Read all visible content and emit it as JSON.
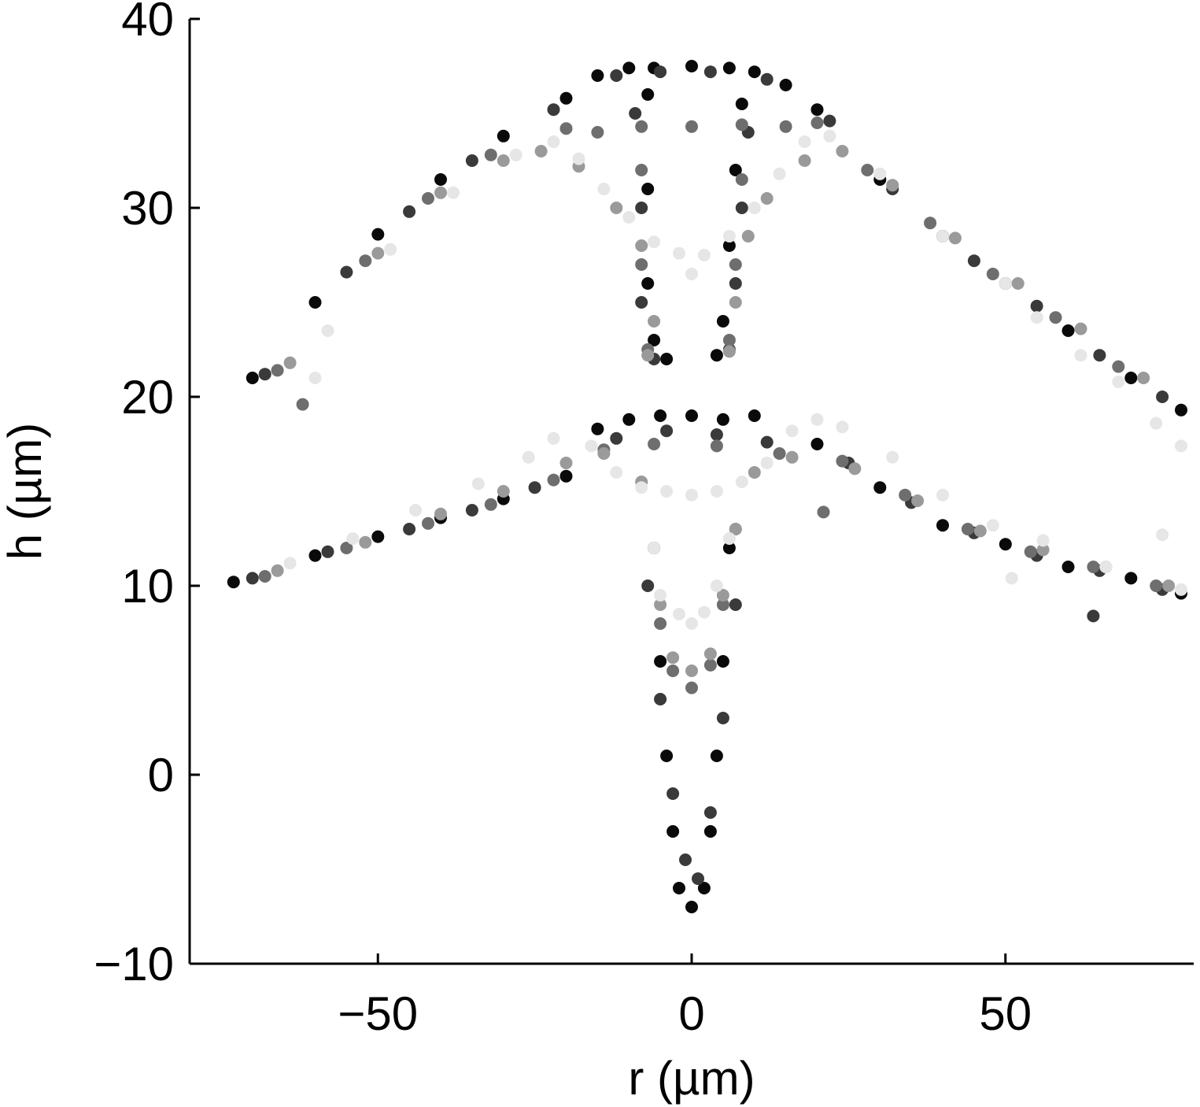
{
  "chart_data": {
    "type": "scatter",
    "title": "",
    "xlabel": "r (µm)",
    "ylabel": "h (µm)",
    "xlim": [
      -80,
      80
    ],
    "ylim": [
      -10,
      40
    ],
    "xticks": [
      {
        "value": -50,
        "label": "−50"
      },
      {
        "value": 0,
        "label": "0"
      },
      {
        "value": 50,
        "label": "50"
      }
    ],
    "yticks": [
      {
        "value": -10,
        "label": "−10"
      },
      {
        "value": 0,
        "label": "0"
      },
      {
        "value": 10,
        "label": "10"
      },
      {
        "value": 20,
        "label": "20"
      },
      {
        "value": 30,
        "label": "30"
      },
      {
        "value": 40,
        "label": "40"
      }
    ],
    "grid": false,
    "legend": "none",
    "series": [
      {
        "color": "#0a0a0a",
        "group": "upper",
        "points": [
          [
            -70,
            21.0
          ],
          [
            -60,
            25.0
          ],
          [
            -50,
            28.6
          ],
          [
            -40,
            31.5
          ],
          [
            -30,
            33.8
          ],
          [
            -20,
            35.8
          ],
          [
            -15,
            37.0
          ],
          [
            -10,
            37.4
          ],
          [
            -6,
            37.4
          ],
          [
            0,
            37.5
          ],
          [
            6,
            37.4
          ],
          [
            10,
            37.2
          ],
          [
            15,
            36.5
          ],
          [
            20,
            35.2
          ],
          [
            30,
            31.5
          ],
          [
            40,
            28.5
          ],
          [
            50,
            26.0
          ],
          [
            60,
            23.5
          ],
          [
            70,
            21.0
          ],
          [
            78,
            19.3
          ],
          [
            -7,
            36.0
          ],
          [
            -7,
            31.0
          ],
          [
            -7,
            26.0
          ],
          [
            -6,
            23.0
          ],
          [
            -4,
            22.0
          ],
          [
            4,
            22.2
          ],
          [
            5,
            24.0
          ],
          [
            6,
            28.0
          ],
          [
            7,
            32.0
          ],
          [
            8,
            35.5
          ]
        ]
      },
      {
        "color": "#0a0a0a",
        "group": "lower",
        "points": [
          [
            -73,
            10.2
          ],
          [
            -60,
            11.6
          ],
          [
            -50,
            12.6
          ],
          [
            -40,
            13.6
          ],
          [
            -30,
            14.6
          ],
          [
            -20,
            15.8
          ],
          [
            -15,
            18.3
          ],
          [
            -10,
            18.8
          ],
          [
            -5,
            19.0
          ],
          [
            0,
            19.0
          ],
          [
            5,
            18.8
          ],
          [
            10,
            19.0
          ],
          [
            20,
            17.5
          ],
          [
            30,
            15.2
          ],
          [
            40,
            13.2
          ],
          [
            50,
            12.2
          ],
          [
            60,
            11.0
          ],
          [
            70,
            10.4
          ],
          [
            78,
            9.6
          ],
          [
            -6,
            12.0
          ],
          [
            -5,
            6.0
          ],
          [
            -4,
            1.0
          ],
          [
            -3,
            -3.0
          ],
          [
            -2,
            -6.0
          ],
          [
            0,
            -7.0
          ],
          [
            2,
            -6.0
          ],
          [
            3,
            -3.0
          ],
          [
            4,
            1.0
          ],
          [
            5,
            6.0
          ],
          [
            6,
            12.0
          ]
        ]
      },
      {
        "color": "#3a3a3a",
        "group": "upper",
        "points": [
          [
            -68,
            21.2
          ],
          [
            -55,
            26.6
          ],
          [
            -45,
            29.8
          ],
          [
            -35,
            32.5
          ],
          [
            -22,
            35.2
          ],
          [
            -12,
            37.0
          ],
          [
            -5,
            37.2
          ],
          [
            3,
            37.2
          ],
          [
            12,
            36.8
          ],
          [
            22,
            34.6
          ],
          [
            32,
            31.0
          ],
          [
            45,
            27.2
          ],
          [
            55,
            24.8
          ],
          [
            65,
            22.2
          ],
          [
            75,
            20.0
          ],
          [
            -9,
            35.0
          ],
          [
            -8,
            30.0
          ],
          [
            -8,
            25.0
          ],
          [
            -6,
            22.0
          ],
          [
            6,
            22.5
          ],
          [
            7,
            26.0
          ],
          [
            8,
            30.0
          ],
          [
            9,
            34.0
          ]
        ]
      },
      {
        "color": "#3a3a3a",
        "group": "lower",
        "points": [
          [
            -70,
            10.4
          ],
          [
            -58,
            11.8
          ],
          [
            -45,
            13.0
          ],
          [
            -35,
            14.0
          ],
          [
            -25,
            15.2
          ],
          [
            -12,
            17.8
          ],
          [
            -4,
            18.2
          ],
          [
            4,
            18.0
          ],
          [
            12,
            17.6
          ],
          [
            25,
            16.5
          ],
          [
            35,
            14.4
          ],
          [
            45,
            12.8
          ],
          [
            55,
            11.6
          ],
          [
            65,
            10.8
          ],
          [
            75,
            9.8
          ],
          [
            64,
            8.4
          ],
          [
            -7,
            10.0
          ],
          [
            -5,
            4.0
          ],
          [
            -3,
            -1.0
          ],
          [
            -1,
            -4.5
          ],
          [
            1,
            -5.5
          ],
          [
            3,
            -2.0
          ],
          [
            5,
            3.0
          ],
          [
            7,
            9.0
          ]
        ]
      },
      {
        "color": "#6e6e6e",
        "group": "upper",
        "points": [
          [
            -66,
            21.4
          ],
          [
            -52,
            27.2
          ],
          [
            -42,
            30.5
          ],
          [
            -32,
            32.8
          ],
          [
            -20,
            34.2
          ],
          [
            -15,
            34.0
          ],
          [
            -8,
            34.3
          ],
          [
            0,
            34.3
          ],
          [
            8,
            34.4
          ],
          [
            15,
            34.3
          ],
          [
            20,
            34.5
          ],
          [
            28,
            32.0
          ],
          [
            38,
            29.2
          ],
          [
            48,
            26.5
          ],
          [
            58,
            24.2
          ],
          [
            68,
            21.6
          ],
          [
            -62,
            19.6
          ],
          [
            -8,
            32.0
          ],
          [
            -8,
            27.0
          ],
          [
            -7,
            22.5
          ],
          [
            6,
            23.0
          ],
          [
            7,
            27.0
          ],
          [
            8,
            31.5
          ]
        ]
      },
      {
        "color": "#6e6e6e",
        "group": "lower",
        "points": [
          [
            -68,
            10.5
          ],
          [
            -55,
            12.0
          ],
          [
            -42,
            13.3
          ],
          [
            -32,
            14.3
          ],
          [
            -22,
            15.6
          ],
          [
            -14,
            17.2
          ],
          [
            -6,
            17.5
          ],
          [
            4,
            17.4
          ],
          [
            14,
            17.0
          ],
          [
            24,
            16.6
          ],
          [
            34,
            14.8
          ],
          [
            44,
            13.0
          ],
          [
            54,
            11.8
          ],
          [
            64,
            11.0
          ],
          [
            74,
            10.0
          ],
          [
            21,
            13.9
          ],
          [
            -6,
            12.0
          ],
          [
            -5,
            8.0
          ],
          [
            -3,
            5.5
          ],
          [
            0,
            4.6
          ],
          [
            3,
            5.8
          ],
          [
            5,
            9.0
          ],
          [
            7,
            13.0
          ]
        ]
      },
      {
        "color": "#9a9a9a",
        "group": "upper",
        "points": [
          [
            -64,
            21.8
          ],
          [
            -50,
            27.6
          ],
          [
            -40,
            30.8
          ],
          [
            -30,
            32.5
          ],
          [
            -24,
            33.0
          ],
          [
            -18,
            32.2
          ],
          [
            -12,
            30.0
          ],
          [
            -8,
            28.0
          ],
          [
            -6,
            24.0
          ],
          [
            -7,
            22.2
          ],
          [
            6,
            22.4
          ],
          [
            7,
            25.0
          ],
          [
            9,
            28.5
          ],
          [
            12,
            30.5
          ],
          [
            18,
            32.5
          ],
          [
            24,
            33.0
          ],
          [
            32,
            31.2
          ],
          [
            42,
            28.4
          ],
          [
            52,
            26.0
          ],
          [
            62,
            23.6
          ],
          [
            72,
            21.0
          ]
        ]
      },
      {
        "color": "#9a9a9a",
        "group": "lower",
        "points": [
          [
            -66,
            10.8
          ],
          [
            -52,
            12.3
          ],
          [
            -40,
            13.8
          ],
          [
            -30,
            15.0
          ],
          [
            -20,
            16.5
          ],
          [
            -14,
            17.0
          ],
          [
            -8,
            15.5
          ],
          [
            -6,
            12.0
          ],
          [
            -5,
            9.0
          ],
          [
            -3,
            6.2
          ],
          [
            0,
            5.5
          ],
          [
            3,
            6.4
          ],
          [
            5,
            9.5
          ],
          [
            7,
            13.0
          ],
          [
            10,
            16.0
          ],
          [
            16,
            16.8
          ],
          [
            26,
            16.2
          ],
          [
            36,
            14.5
          ],
          [
            46,
            12.9
          ],
          [
            56,
            11.9
          ],
          [
            66,
            11.0
          ],
          [
            76,
            10.0
          ]
        ]
      },
      {
        "color": "#e6e6e6",
        "group": "upper",
        "points": [
          [
            -60,
            21.0
          ],
          [
            -58,
            23.5
          ],
          [
            -48,
            27.8
          ],
          [
            -38,
            30.8
          ],
          [
            -28,
            32.8
          ],
          [
            -22,
            33.5
          ],
          [
            -18,
            32.6
          ],
          [
            -14,
            31.0
          ],
          [
            -10,
            29.5
          ],
          [
            -6,
            28.2
          ],
          [
            -2,
            27.6
          ],
          [
            0,
            26.5
          ],
          [
            2,
            27.5
          ],
          [
            6,
            28.5
          ],
          [
            10,
            30.0
          ],
          [
            14,
            31.8
          ],
          [
            18,
            33.5
          ],
          [
            22,
            33.8
          ],
          [
            30,
            31.8
          ],
          [
            40,
            28.5
          ],
          [
            50,
            26.0
          ],
          [
            55,
            24.2
          ],
          [
            62,
            22.2
          ],
          [
            68,
            20.8
          ],
          [
            74,
            18.6
          ],
          [
            78,
            17.4
          ]
        ]
      },
      {
        "color": "#e6e6e6",
        "group": "lower",
        "points": [
          [
            -64,
            11.2
          ],
          [
            -54,
            12.5
          ],
          [
            -44,
            14.0
          ],
          [
            -34,
            15.4
          ],
          [
            -26,
            16.8
          ],
          [
            -22,
            17.8
          ],
          [
            -16,
            17.4
          ],
          [
            -12,
            16.0
          ],
          [
            -8,
            15.2
          ],
          [
            -4,
            15.0
          ],
          [
            0,
            14.8
          ],
          [
            4,
            15.0
          ],
          [
            8,
            15.5
          ],
          [
            12,
            16.5
          ],
          [
            16,
            18.2
          ],
          [
            20,
            18.8
          ],
          [
            24,
            18.4
          ],
          [
            32,
            16.8
          ],
          [
            40,
            14.8
          ],
          [
            48,
            13.2
          ],
          [
            51,
            10.4
          ],
          [
            56,
            12.4
          ],
          [
            66,
            11.0
          ],
          [
            75,
            12.7
          ],
          [
            78,
            9.8
          ],
          [
            -6,
            12.0
          ],
          [
            -5,
            9.5
          ],
          [
            -2,
            8.5
          ],
          [
            0,
            8.0
          ],
          [
            2,
            8.6
          ],
          [
            4,
            10.0
          ],
          [
            6,
            12.5
          ]
        ]
      }
    ]
  }
}
